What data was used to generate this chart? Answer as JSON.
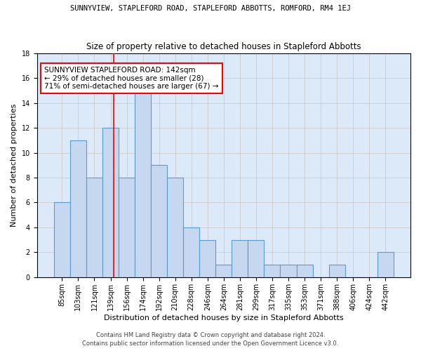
{
  "title1": "SUNNYVIEW, STAPLEFORD ROAD, STAPLEFORD ABBOTTS, ROMFORD, RM4 1EJ",
  "title2": "Size of property relative to detached houses in Stapleford Abbotts",
  "xlabel": "Distribution of detached houses by size in Stapleford Abbotts",
  "ylabel": "Number of detached properties",
  "categories": [
    "85sqm",
    "103sqm",
    "121sqm",
    "139sqm",
    "156sqm",
    "174sqm",
    "192sqm",
    "210sqm",
    "228sqm",
    "246sqm",
    "264sqm",
    "281sqm",
    "299sqm",
    "317sqm",
    "335sqm",
    "353sqm",
    "371sqm",
    "388sqm",
    "406sqm",
    "424sqm",
    "442sqm"
  ],
  "values": [
    6,
    11,
    8,
    12,
    8,
    15,
    9,
    8,
    4,
    3,
    1,
    3,
    3,
    1,
    1,
    1,
    0,
    1,
    0,
    0,
    2
  ],
  "bar_color": "#c5d8f0",
  "bar_edge_color": "#5b9bd5",
  "annotation_box_text": "SUNNYVIEW STAPLEFORD ROAD: 142sqm\n← 29% of detached houses are smaller (28)\n71% of semi-detached houses are larger (67) →",
  "annotation_box_color": "white",
  "annotation_box_edge_color": "red",
  "vline_color": "red",
  "ylim": [
    0,
    18
  ],
  "yticks": [
    0,
    2,
    4,
    6,
    8,
    10,
    12,
    14,
    16,
    18
  ],
  "grid_color": "#cccccc",
  "background_color": "#dce9f8",
  "footer1": "Contains HM Land Registry data © Crown copyright and database right 2024.",
  "footer2": "Contains public sector information licensed under the Open Government Licence v3.0.",
  "title1_fontsize": 7.5,
  "title2_fontsize": 8.5,
  "xlabel_fontsize": 8,
  "ylabel_fontsize": 8,
  "tick_fontsize": 7,
  "annotation_fontsize": 7.5,
  "footer_fontsize": 6
}
